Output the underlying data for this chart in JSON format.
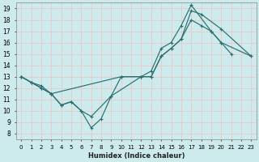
{
  "xlabel": "Humidex (Indice chaleur)",
  "bg_color": "#cdeaed",
  "grid_color": "#b0d8dc",
  "line_color": "#2a7070",
  "xlim": [
    -0.5,
    23.5
  ],
  "ylim": [
    7.5,
    19.5
  ],
  "xticks": [
    0,
    1,
    2,
    3,
    4,
    5,
    6,
    7,
    8,
    9,
    10,
    11,
    12,
    13,
    14,
    15,
    16,
    17,
    18,
    19,
    20,
    21,
    22,
    23
  ],
  "yticks": [
    8,
    9,
    10,
    11,
    12,
    13,
    14,
    15,
    16,
    17,
    18,
    19
  ],
  "line1_x": [
    0,
    1,
    2,
    3,
    10,
    12,
    13,
    14,
    15,
    16,
    17,
    19,
    20,
    21
  ],
  "line1_y": [
    13,
    12.5,
    12,
    11.5,
    13,
    13,
    13.5,
    15.5,
    16,
    17.5,
    19.3,
    17,
    16,
    15
  ],
  "line2_x": [
    0,
    1,
    2,
    3,
    4,
    5,
    6,
    7,
    9,
    10,
    12,
    13,
    14,
    15,
    16,
    17,
    18,
    20,
    23
  ],
  "line2_y": [
    13,
    12.5,
    12,
    11.5,
    10.5,
    10.8,
    10,
    9.5,
    11.3,
    13,
    13,
    13,
    14.8,
    15.5,
    16.3,
    18.8,
    18.5,
    17.2,
    14.8
  ],
  "line3_x": [
    0,
    1,
    2,
    3,
    4,
    5,
    6,
    7,
    8,
    9,
    12,
    13,
    14,
    15,
    16,
    17,
    18,
    19,
    20,
    23
  ],
  "line3_y": [
    13,
    12.5,
    12.2,
    11.5,
    10.5,
    10.8,
    10,
    8.5,
    9.3,
    11.3,
    13,
    13,
    14.8,
    15.5,
    16.3,
    18.0,
    17.5,
    17.0,
    16.0,
    14.8
  ]
}
